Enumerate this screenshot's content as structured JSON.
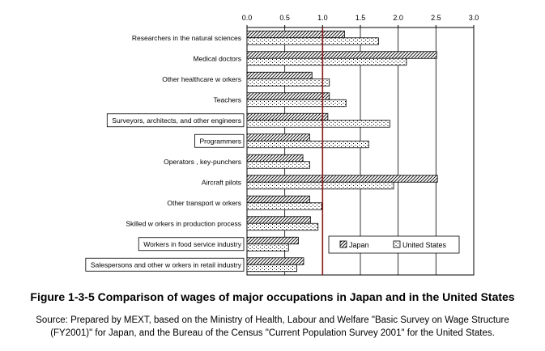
{
  "figure": {
    "title": "Figure 1-3-5  Comparison of wages of major occupations in Japan and in the United States",
    "source_line1": "Source: Prepared by MEXT, based on the Ministry of Health, Labour and Welfare \"Basic Survey on Wage Structure",
    "source_line2": "(FY2001)\" for Japan, and the Bureau of the Census \"Current Population Survey 2001\" for the United States."
  },
  "chart_data": {
    "type": "bar",
    "orientation": "horizontal",
    "title": "Figure 1-3-5  Comparison of wages of major occupations in Japan and in the United States",
    "xlabel": "",
    "ylabel": "",
    "xlim": [
      0,
      3.0
    ],
    "ticks": [
      "0.0",
      "0.5",
      "1.0",
      "1.5",
      "2.0",
      "2.5",
      "3.0"
    ],
    "tick_values": [
      0,
      0.5,
      1.0,
      1.5,
      2.0,
      2.5,
      3.0
    ],
    "reference_line": 1.0,
    "grid": "vertical",
    "legend_position": "bottom-right",
    "categories": [
      "Researchers in the natural sciences",
      "Medical doctors",
      "Other healthcare w orkers",
      "Teachers",
      "Surveyors, architects, and other engineers",
      "Programmers",
      "Operators , key-punchers",
      "Aircraft pilots",
      "Other transport w orkers",
      "Skilled w orkers in production process",
      "Workers in food service industry",
      "Salespersons and other w orkers in retail industry"
    ],
    "boxed_categories": [
      4,
      5,
      10,
      11
    ],
    "series": [
      {
        "name": "Japan",
        "pattern": "diagonal-hatch",
        "values": [
          1.29,
          2.51,
          0.86,
          1.09,
          1.07,
          0.83,
          0.74,
          2.52,
          0.83,
          0.84,
          0.68,
          0.75
        ]
      },
      {
        "name": "United States",
        "pattern": "dots",
        "values": [
          1.74,
          2.11,
          1.09,
          1.31,
          1.89,
          1.61,
          0.83,
          1.94,
          0.99,
          0.94,
          0.55,
          0.66
        ]
      }
    ],
    "colors": {
      "reference_line": "#8b1a1a",
      "gridline": "#000000"
    }
  }
}
